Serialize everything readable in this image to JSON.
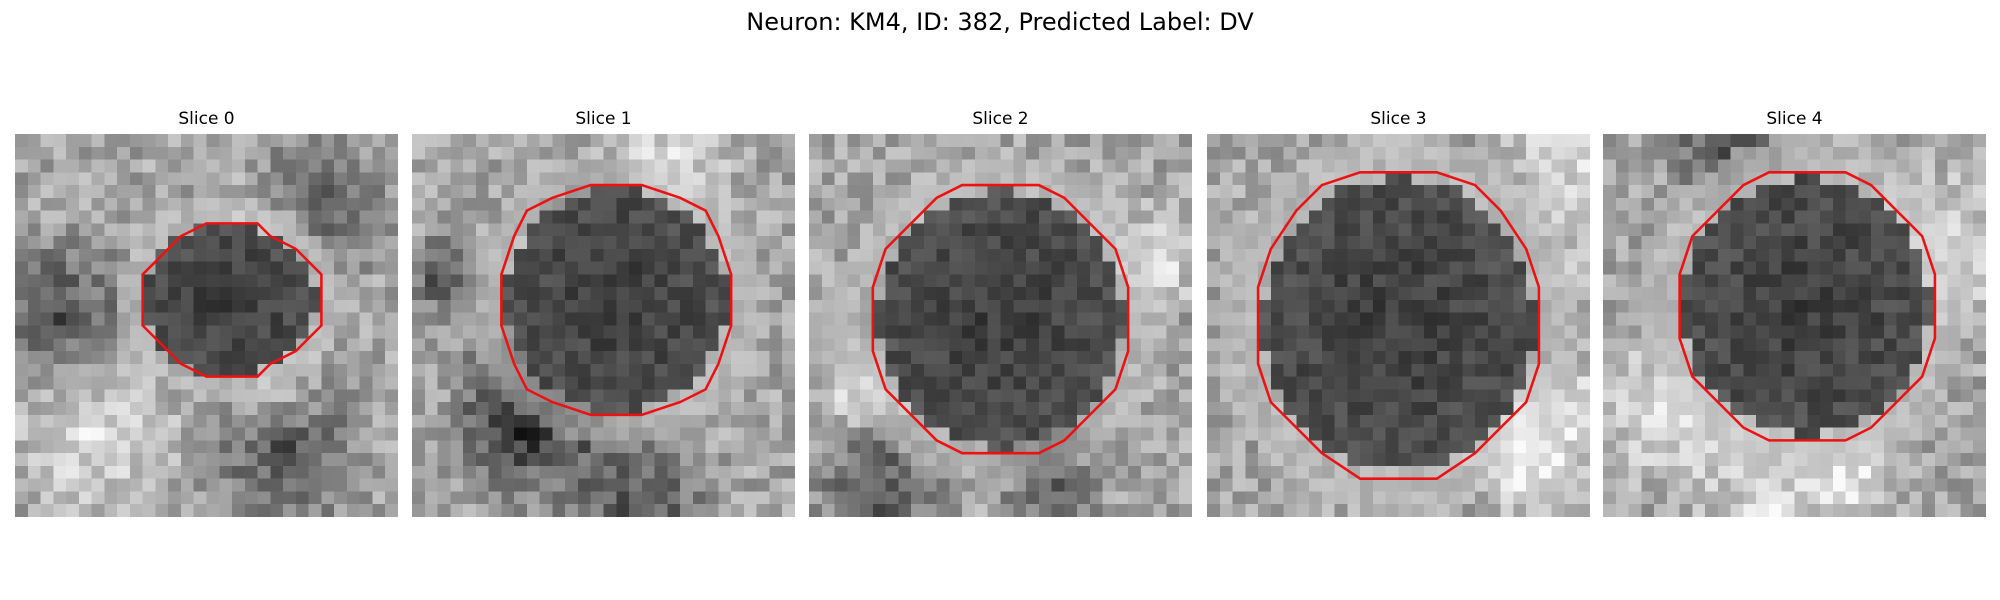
{
  "title": "Neuron: KM4, ID: 382, Predicted Label: DV",
  "panels": [
    {
      "title": "Slice 0"
    },
    {
      "title": "Slice 1"
    },
    {
      "title": "Slice 2"
    },
    {
      "title": "Slice 3"
    },
    {
      "title": "Slice 4"
    }
  ]
}
